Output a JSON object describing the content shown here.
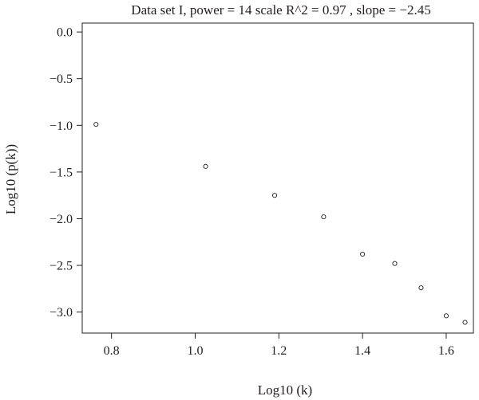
{
  "chart_data": {
    "type": "scatter",
    "title": "Data set I, power = 14 scale R^2 = 0.97 , slope = −2.45",
    "xlabel": "Log10 (k)",
    "ylabel": "Log10 (p(k))",
    "xlim": [
      0.73,
      1.665
    ],
    "ylim": [
      -3.225,
      0.095
    ],
    "x_ticks": [
      0.8,
      1.0,
      1.2,
      1.4,
      1.6
    ],
    "x_tick_labels": [
      "0.8",
      "1.0",
      "1.2",
      "1.4",
      "1.6"
    ],
    "y_ticks": [
      0.0,
      -0.5,
      -1.0,
      -1.5,
      -2.0,
      -2.5,
      -3.0
    ],
    "y_tick_labels": [
      "0.0",
      "−0.5",
      "−1.0",
      "−1.5",
      "−2.0",
      "−2.5",
      "−3.0"
    ],
    "points": [
      {
        "x": 0.763,
        "y": -0.99
      },
      {
        "x": 1.025,
        "y": -1.44
      },
      {
        "x": 1.19,
        "y": -1.75
      },
      {
        "x": 1.307,
        "y": -1.98
      },
      {
        "x": 1.4,
        "y": -2.38
      },
      {
        "x": 1.477,
        "y": -2.48
      },
      {
        "x": 1.54,
        "y": -2.74
      },
      {
        "x": 1.6,
        "y": -3.04
      },
      {
        "x": 1.645,
        "y": -3.11
      }
    ],
    "marker": "open-circle",
    "grid": false,
    "legend": "none",
    "color": "#231f20"
  }
}
